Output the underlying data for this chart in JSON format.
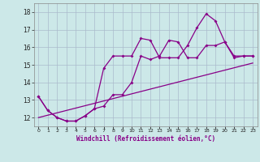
{
  "background_color": "#cce8e8",
  "line_color": "#880088",
  "grid_color": "#aabbcc",
  "xlabel": "Windchill (Refroidissement éolien,°C)",
  "xlabel_color": "#880088",
  "ylabel_ticks": [
    12,
    13,
    14,
    15,
    16,
    17,
    18
  ],
  "xlim": [
    -0.5,
    23.5
  ],
  "ylim": [
    11.5,
    18.5
  ],
  "xtick_labels": [
    "0",
    "1",
    "2",
    "3",
    "4",
    "5",
    "6",
    "7",
    "8",
    "9",
    "10",
    "11",
    "12",
    "13",
    "14",
    "15",
    "16",
    "17",
    "18",
    "19",
    "20",
    "21",
    "22",
    "23"
  ],
  "line1_x": [
    0,
    1,
    2,
    3,
    4,
    5,
    6,
    7,
    8,
    9,
    10,
    11,
    12,
    13,
    14,
    15,
    16,
    17,
    18,
    19,
    20,
    21,
    22,
    23
  ],
  "line1_y": [
    13.2,
    12.4,
    12.0,
    11.8,
    11.8,
    12.1,
    12.5,
    12.65,
    13.3,
    13.3,
    14.0,
    15.5,
    15.3,
    15.5,
    16.4,
    16.3,
    15.4,
    15.4,
    16.1,
    16.1,
    16.3,
    15.4,
    15.5,
    15.5
  ],
  "line2_x": [
    0,
    1,
    2,
    3,
    4,
    5,
    6,
    7,
    8,
    9,
    10,
    11,
    12,
    13,
    14,
    15,
    16,
    17,
    18,
    19,
    20,
    21,
    22,
    23
  ],
  "line2_y": [
    13.2,
    12.4,
    12.0,
    11.8,
    11.8,
    12.1,
    12.5,
    14.8,
    15.5,
    15.5,
    15.5,
    16.5,
    16.4,
    15.4,
    15.4,
    15.4,
    16.1,
    17.1,
    17.9,
    17.5,
    16.3,
    15.5,
    15.5,
    15.5
  ],
  "line3_x": [
    0,
    23
  ],
  "line3_y": [
    12.0,
    15.1
  ]
}
